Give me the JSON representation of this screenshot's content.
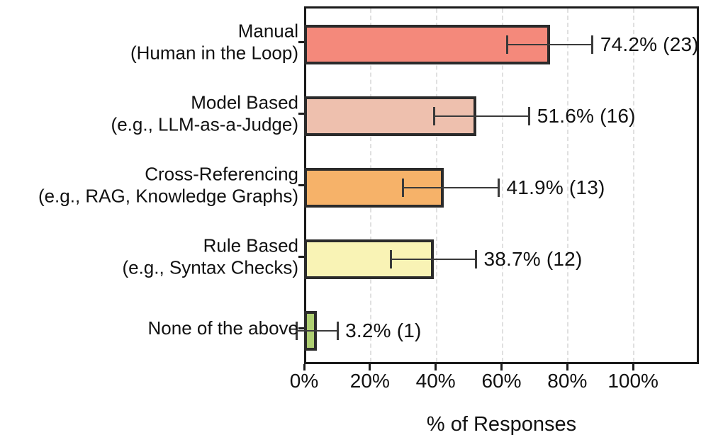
{
  "chart_data": {
    "type": "bar",
    "orientation": "horizontal",
    "xlabel": "% of Responses",
    "xlim": [
      0,
      120
    ],
    "x_tick_values": [
      0,
      20,
      40,
      60,
      80,
      100
    ],
    "x_tick_labels": [
      "0%",
      "20%",
      "40%",
      "60%",
      "80%",
      "100%"
    ],
    "grid": "vertical-dashed",
    "legend": "none",
    "categories": [
      {
        "label_line1": "Manual",
        "label_line2": "(Human in the Loop)",
        "value": 74.2,
        "count": 23,
        "annotation": "74.2% (23)",
        "err_lo": 61.0,
        "err_hi": 87.0,
        "color": "#f4897b"
      },
      {
        "label_line1": "Model Based",
        "label_line2": "(e.g., LLM-as-a-Judge)",
        "value": 51.6,
        "count": 16,
        "annotation": "51.6% (16)",
        "err_lo": 38.9,
        "err_hi": 67.8,
        "color": "#eec0ae"
      },
      {
        "label_line1": "Cross-Referencing",
        "label_line2": "(e.g., RAG, Knowledge Graphs)",
        "value": 41.9,
        "count": 13,
        "annotation": "41.9% (13)",
        "err_lo": 29.3,
        "err_hi": 58.5,
        "color": "#f6b269"
      },
      {
        "label_line1": "Rule Based",
        "label_line2": "(e.g., Syntax Checks)",
        "value": 38.7,
        "count": 12,
        "annotation": "38.7% (12)",
        "err_lo": 25.7,
        "err_hi": 51.6,
        "color": "#f9f3b5"
      },
      {
        "label_line1": "None of the above",
        "label_line2": "",
        "value": 3.2,
        "count": 1,
        "annotation": "3.2% (1)",
        "err_lo": -3.0,
        "err_hi": 9.5,
        "color": "#aecf72"
      }
    ],
    "colors": {
      "bar_edge": "#2b2b2b",
      "error_bar": "#3a3a3a",
      "grid": "#e0e0e0",
      "spine": "#1a1a1a",
      "text": "#111111",
      "background": "#ffffff"
    }
  }
}
